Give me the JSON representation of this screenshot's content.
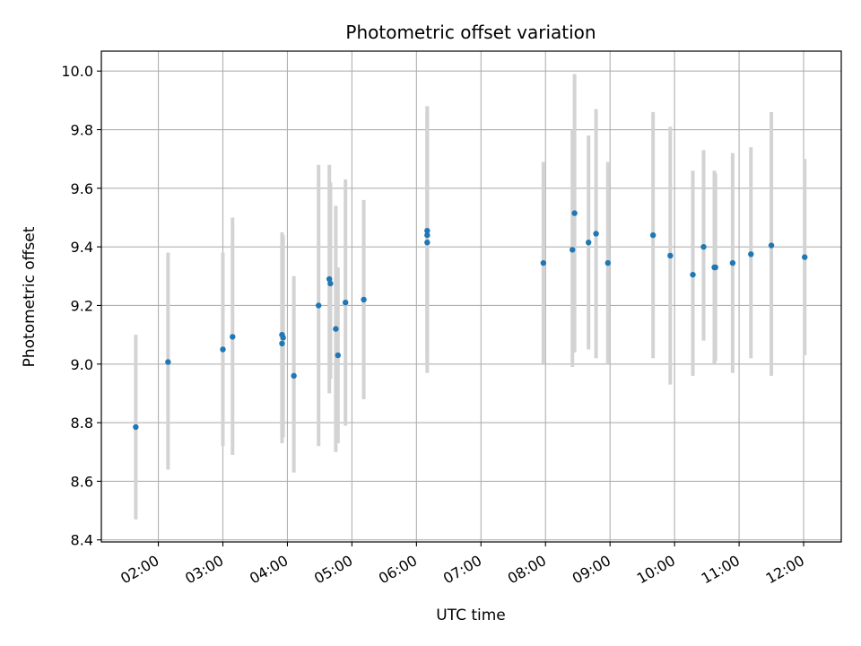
{
  "chart_data": {
    "type": "scatter",
    "title": "Photometric offset variation",
    "xlabel": "UTC time",
    "ylabel": "Photometric offset",
    "x_axis": {
      "type": "time",
      "range": [
        "01:07",
        "12:35"
      ],
      "ticks": [
        "02:00",
        "03:00",
        "04:00",
        "05:00",
        "06:00",
        "07:00",
        "08:00",
        "09:00",
        "10:00",
        "11:00",
        "12:00"
      ]
    },
    "y_axis": {
      "range": [
        8.393,
        10.068
      ],
      "ticks": [
        "8.4",
        "8.6",
        "8.8",
        "9.0",
        "9.2",
        "9.4",
        "9.6",
        "9.8",
        "10.0"
      ]
    },
    "grid": true,
    "colors": {
      "points": "#1f77b4",
      "errorbars": "#d3d3d3",
      "grid": "#b0b0b0"
    },
    "series": [
      {
        "style": "points with vertical error bars",
        "points": [
          {
            "x": "01:39",
            "y": 8.785,
            "lo": 8.47,
            "hi": 9.1
          },
          {
            "x": "02:09",
            "y": 9.007,
            "lo": 8.64,
            "hi": 9.38
          },
          {
            "x": "03:00",
            "y": 9.05,
            "lo": 8.72,
            "hi": 9.38
          },
          {
            "x": "03:09",
            "y": 9.093,
            "lo": 8.69,
            "hi": 9.5
          },
          {
            "x": "03:55",
            "y": 9.1,
            "lo": 8.76,
            "hi": 9.45
          },
          {
            "x": "03:56",
            "y": 9.09,
            "lo": 8.75,
            "hi": 9.44
          },
          {
            "x": "03:55",
            "y": 9.07,
            "lo": 8.73,
            "hi": 9.4
          },
          {
            "x": "04:06",
            "y": 8.96,
            "lo": 8.63,
            "hi": 9.3
          },
          {
            "x": "04:29",
            "y": 9.2,
            "lo": 8.72,
            "hi": 9.68
          },
          {
            "x": "04:39",
            "y": 9.29,
            "lo": 8.9,
            "hi": 9.68
          },
          {
            "x": "04:40",
            "y": 9.275,
            "lo": 8.95,
            "hi": 9.62
          },
          {
            "x": "04:45",
            "y": 9.12,
            "lo": 8.7,
            "hi": 9.54
          },
          {
            "x": "04:47",
            "y": 9.03,
            "lo": 8.73,
            "hi": 9.33
          },
          {
            "x": "04:54",
            "y": 9.21,
            "lo": 8.79,
            "hi": 9.63
          },
          {
            "x": "05:11",
            "y": 9.22,
            "lo": 8.88,
            "hi": 9.56
          },
          {
            "x": "06:10",
            "y": 9.455,
            "lo": 9.03,
            "hi": 9.88
          },
          {
            "x": "06:10",
            "y": 9.44,
            "lo": 9.0,
            "hi": 9.88
          },
          {
            "x": "06:10",
            "y": 9.415,
            "lo": 8.97,
            "hi": 9.86
          },
          {
            "x": "07:58",
            "y": 9.345,
            "lo": 9.0,
            "hi": 9.69
          },
          {
            "x": "08:25",
            "y": 9.39,
            "lo": 8.99,
            "hi": 9.8
          },
          {
            "x": "08:27",
            "y": 9.515,
            "lo": 9.04,
            "hi": 9.99
          },
          {
            "x": "08:40",
            "y": 9.415,
            "lo": 9.05,
            "hi": 9.78
          },
          {
            "x": "08:47",
            "y": 9.445,
            "lo": 9.02,
            "hi": 9.87
          },
          {
            "x": "08:58",
            "y": 9.345,
            "lo": 9.0,
            "hi": 9.69
          },
          {
            "x": "09:40",
            "y": 9.44,
            "lo": 9.02,
            "hi": 9.86
          },
          {
            "x": "09:56",
            "y": 9.37,
            "lo": 8.93,
            "hi": 9.81
          },
          {
            "x": "10:17",
            "y": 9.305,
            "lo": 8.96,
            "hi": 9.66
          },
          {
            "x": "10:27",
            "y": 9.4,
            "lo": 9.08,
            "hi": 9.73
          },
          {
            "x": "10:37",
            "y": 9.33,
            "lo": 9.0,
            "hi": 9.66
          },
          {
            "x": "10:38",
            "y": 9.33,
            "lo": 9.01,
            "hi": 9.65
          },
          {
            "x": "10:54",
            "y": 9.345,
            "lo": 8.97,
            "hi": 9.72
          },
          {
            "x": "11:11",
            "y": 9.375,
            "lo": 9.02,
            "hi": 9.74
          },
          {
            "x": "11:30",
            "y": 9.405,
            "lo": 8.96,
            "hi": 9.86
          },
          {
            "x": "12:01",
            "y": 9.365,
            "lo": 9.03,
            "hi": 9.7
          }
        ]
      }
    ]
  }
}
